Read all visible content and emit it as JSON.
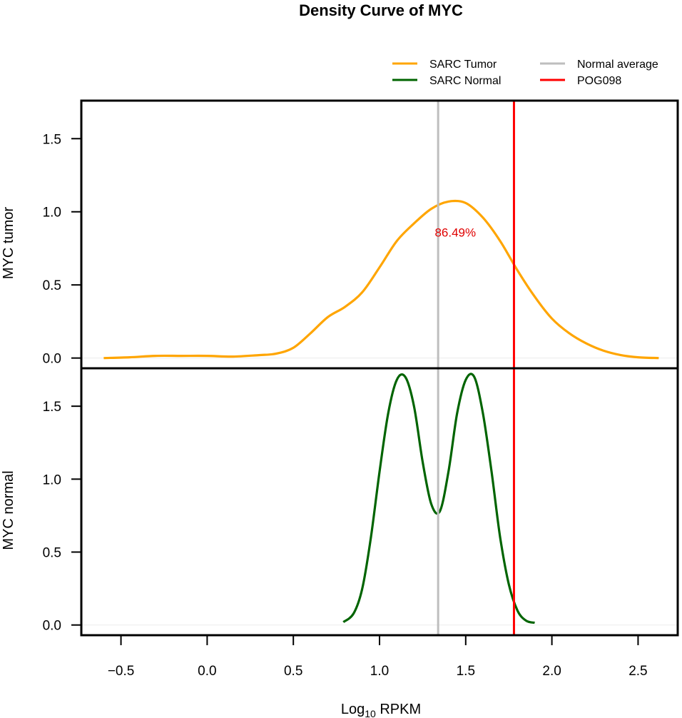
{
  "title": "Density Curve of  MYC",
  "legend": [
    {
      "label": "SARC  Tumor",
      "color": "#FFA500"
    },
    {
      "label": "SARC  Normal",
      "color": "#006400"
    },
    {
      "label": "Normal  average",
      "color": "#BEBEBE"
    },
    {
      "label": "POG098",
      "color": "#FF0000"
    }
  ],
  "xlabel_main": "Log",
  "xlabel_sub": "10",
  "xlabel_tail": " RPKM",
  "top_ylabel": "MYC  tumor",
  "bottom_ylabel": "MYC  normal",
  "percentile_label": "86.49%",
  "chart_data": {
    "type": "line",
    "xlim": [
      -0.73,
      2.73
    ],
    "x_ticks": [
      -0.5,
      0.0,
      0.5,
      1.0,
      1.5,
      2.0,
      2.5
    ],
    "x_tick_labels": [
      "−0.5",
      "0.0",
      "0.5",
      "1.0",
      "1.5",
      "2.0",
      "2.5"
    ],
    "panels": [
      {
        "name": "MYC  tumor",
        "ylim": [
          -0.07,
          1.76
        ],
        "y_ticks": [
          0.0,
          0.5,
          1.0,
          1.5
        ],
        "y_tick_labels": [
          "0.0",
          "0.5",
          "1.0",
          "1.5"
        ],
        "series": [
          {
            "name": "SARC  Tumor",
            "color": "#FFA500",
            "x": [
              -0.6,
              -0.45,
              -0.3,
              -0.15,
              0.0,
              0.15,
              0.3,
              0.4,
              0.5,
              0.6,
              0.7,
              0.8,
              0.9,
              1.0,
              1.1,
              1.2,
              1.3,
              1.4,
              1.5,
              1.6,
              1.7,
              1.8,
              1.9,
              2.0,
              2.1,
              2.2,
              2.3,
              2.4,
              2.5,
              2.62
            ],
            "y": [
              0.0,
              0.005,
              0.015,
              0.015,
              0.015,
              0.01,
              0.02,
              0.03,
              0.07,
              0.17,
              0.28,
              0.35,
              0.45,
              0.62,
              0.8,
              0.92,
              1.02,
              1.07,
              1.06,
              0.96,
              0.8,
              0.6,
              0.42,
              0.27,
              0.17,
              0.1,
              0.05,
              0.02,
              0.005,
              0.0
            ]
          }
        ]
      },
      {
        "name": "MYC  normal",
        "ylim": [
          -0.07,
          1.76
        ],
        "y_ticks": [
          0.0,
          0.5,
          1.0,
          1.5
        ],
        "y_tick_labels": [
          "0.0",
          "0.5",
          "1.0",
          "1.5"
        ],
        "series": [
          {
            "name": "SARC  Normal",
            "color": "#006400",
            "x": [
              0.79,
              0.85,
              0.9,
              0.95,
              1.0,
              1.05,
              1.1,
              1.15,
              1.2,
              1.25,
              1.3,
              1.35,
              1.4,
              1.45,
              1.5,
              1.55,
              1.6,
              1.65,
              1.7,
              1.75,
              1.8,
              1.85,
              1.9
            ],
            "y": [
              0.02,
              0.08,
              0.25,
              0.6,
              1.05,
              1.45,
              1.68,
              1.7,
              1.5,
              1.12,
              0.83,
              0.78,
              1.05,
              1.45,
              1.68,
              1.7,
              1.45,
              1.05,
              0.6,
              0.28,
              0.1,
              0.03,
              0.015
            ]
          }
        ]
      }
    ],
    "vlines": [
      {
        "name": "Normal  average",
        "x": 1.34,
        "color": "#BEBEBE"
      },
      {
        "name": "POG098",
        "x": 1.78,
        "color": "#FF0000"
      }
    ],
    "annotation": {
      "text": "86.49%",
      "x": 1.44,
      "y": 0.86,
      "panel": 0
    },
    "grid": false,
    "legend_position": "top-right"
  }
}
